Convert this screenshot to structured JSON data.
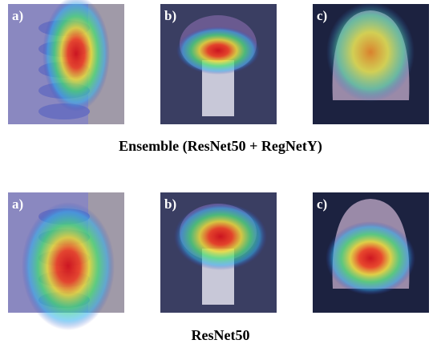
{
  "panels": [
    {
      "images": [
        {
          "label": "a)"
        },
        {
          "label": "b)"
        },
        {
          "label": "c)"
        }
      ],
      "caption": "Ensemble (ResNet50 + RegNetY)"
    },
    {
      "images": [
        {
          "label": "a)"
        },
        {
          "label": "b)"
        },
        {
          "label": "c)"
        }
      ],
      "caption": "ResNet50"
    }
  ]
}
